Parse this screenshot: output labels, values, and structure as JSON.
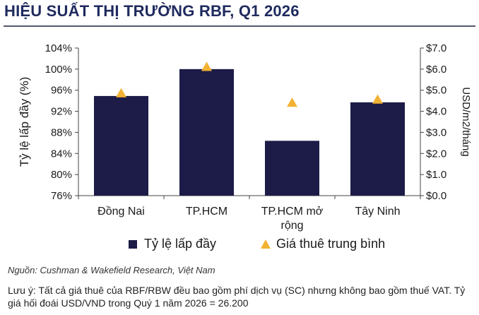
{
  "header": {
    "title": "HIỆU SUẤT THỊ TRƯỜNG RBF, Q1 2026"
  },
  "chart_data": {
    "type": "bar",
    "categories": [
      "Đồng Nai",
      "TP.HCM",
      "TP.HCM mở rộng",
      "Tây Ninh"
    ],
    "category_lines": [
      [
        "Đồng Nai"
      ],
      [
        "TP.HCM"
      ],
      [
        "TP.HCM mở",
        "rộng"
      ],
      [
        "Tây Ninh"
      ]
    ],
    "series": [
      {
        "name": "Tỷ lệ lấp đầy",
        "type": "bar",
        "axis": "left",
        "values": [
          94.9,
          100.0,
          86.4,
          93.7
        ],
        "color": "#1d1b47"
      },
      {
        "name": "Giá thuê trung bình",
        "type": "marker",
        "marker": "triangle",
        "axis": "right",
        "values": [
          4.85,
          6.1,
          4.4,
          4.55
        ],
        "color": "#f2b233"
      }
    ],
    "y_left": {
      "label": "Tỷ lệ lấp đầy (%)",
      "ylim": [
        76,
        104
      ],
      "ticks": [
        76,
        80,
        84,
        88,
        92,
        96,
        100,
        104
      ],
      "tick_labels": [
        "76%",
        "80%",
        "84%",
        "88%",
        "92%",
        "96%",
        "100%",
        "104%"
      ]
    },
    "y_right": {
      "label": "USD/m2/tháng",
      "ylim": [
        0,
        7
      ],
      "ticks": [
        0,
        1,
        2,
        3,
        4,
        5,
        6,
        7
      ],
      "tick_labels": [
        "$0.0",
        "$1.0",
        "$2.0",
        "$3.0",
        "$4.0",
        "$5.0",
        "$6.0",
        "$7.0"
      ]
    },
    "grid": false,
    "legend_position": "bottom"
  },
  "legend": {
    "occupancy_label": "Tỷ lệ lấp đầy",
    "rent_label": "Giá thuê trung bình"
  },
  "footer": {
    "source": "Nguồn: Cushman & Wakefield Research, Việt Nam",
    "note": "Lưu ý: Tất cả giá thuê của RBF/RBW đều bao gồm phí dịch vụ (SC) nhưng không bao gồm thuế VAT. Tỷ giá hối đoái USD/VND trong Quý 1 năm 2026 = 26.200"
  }
}
